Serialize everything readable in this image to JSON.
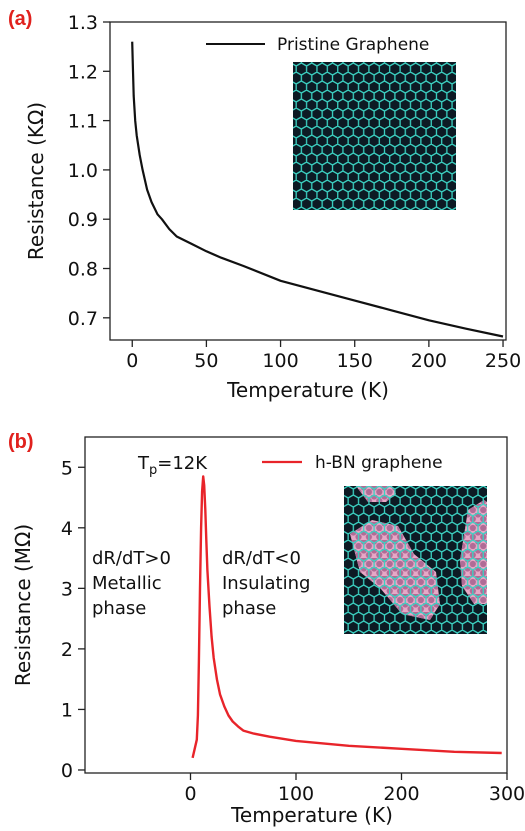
{
  "colors": {
    "label": "#e0211d",
    "curve_a": "#111111",
    "curve_b": "#e8242a",
    "lattice_bg": "#0d1a24",
    "lattice_line": "#3cd1c2",
    "island": "#e6a8c6",
    "island_dot": "#b06c96"
  },
  "chart_data": [
    {
      "type": "line",
      "panel_label": "(a)",
      "xlabel": "Temperature (K)",
      "ylabel": "Resistance (KΩ)",
      "xlim": [
        -15,
        252
      ],
      "ylim": [
        0.655,
        1.3
      ],
      "xticks": [
        0,
        50,
        100,
        150,
        200,
        250
      ],
      "xtick_labels": [
        "0",
        "50",
        "100",
        "150",
        "200",
        "250"
      ],
      "yticks": [
        0.7,
        0.8,
        0.9,
        1.0,
        1.1,
        1.2,
        1.3
      ],
      "ytick_labels": [
        "0.7",
        "0.8",
        "0.9",
        "1.0",
        "1.1",
        "1.2",
        "1.3"
      ],
      "legend_position": "top-right",
      "series": [
        {
          "name": "Pristine Graphene",
          "color": "#111111",
          "x": [
            0,
            0.5,
            1,
            2,
            3,
            5,
            7,
            10,
            13,
            17,
            20,
            25,
            30,
            40,
            50,
            60,
            75,
            100,
            125,
            150,
            175,
            200,
            225,
            250
          ],
          "y": [
            1.26,
            1.2,
            1.15,
            1.1,
            1.07,
            1.03,
            1.0,
            0.96,
            0.935,
            0.91,
            0.9,
            0.88,
            0.865,
            0.85,
            0.835,
            0.822,
            0.805,
            0.775,
            0.755,
            0.735,
            0.715,
            0.695,
            0.678,
            0.662
          ]
        }
      ],
      "inset": "pristine graphene lattice"
    },
    {
      "type": "line",
      "panel_label": "(b)",
      "xlabel": "Temperature (K)",
      "ylabel": "Resistance (MΩ)",
      "xlim": [
        -100,
        300
      ],
      "ylim": [
        -0.05,
        5.5
      ],
      "xticks": [
        0,
        100,
        200,
        300
      ],
      "xtick_labels": [
        "0",
        "100",
        "200",
        "300"
      ],
      "yticks": [
        0,
        1,
        2,
        3,
        4,
        5
      ],
      "ytick_labels": [
        "0",
        "1",
        "2",
        "3",
        "4",
        "5"
      ],
      "legend_position": "top-right",
      "series": [
        {
          "name": "h-BN graphene",
          "color": "#e8242a",
          "x": [
            2,
            4,
            6,
            7,
            8,
            9,
            10,
            11,
            12,
            13,
            14,
            15,
            16,
            18,
            20,
            22,
            25,
            28,
            32,
            36,
            40,
            45,
            50,
            60,
            75,
            100,
            150,
            200,
            250,
            295
          ],
          "y": [
            0.2,
            0.35,
            0.5,
            0.9,
            1.8,
            3.0,
            4.0,
            4.6,
            4.85,
            4.7,
            4.3,
            3.8,
            3.3,
            2.7,
            2.2,
            1.85,
            1.5,
            1.25,
            1.05,
            0.9,
            0.8,
            0.72,
            0.65,
            0.6,
            0.55,
            0.48,
            0.4,
            0.35,
            0.3,
            0.28
          ]
        }
      ],
      "annotations": {
        "tp_main": "T",
        "tp_sub": "p",
        "tp_rest": "=12K",
        "left_line1": "dR/dT>0",
        "left_line2": "Metallic",
        "left_line3": "phase",
        "right_line1": "dR/dT<0",
        "right_line2": "Insulating",
        "right_line3": "phase"
      },
      "inset": "h-BN islands in graphene lattice"
    }
  ]
}
